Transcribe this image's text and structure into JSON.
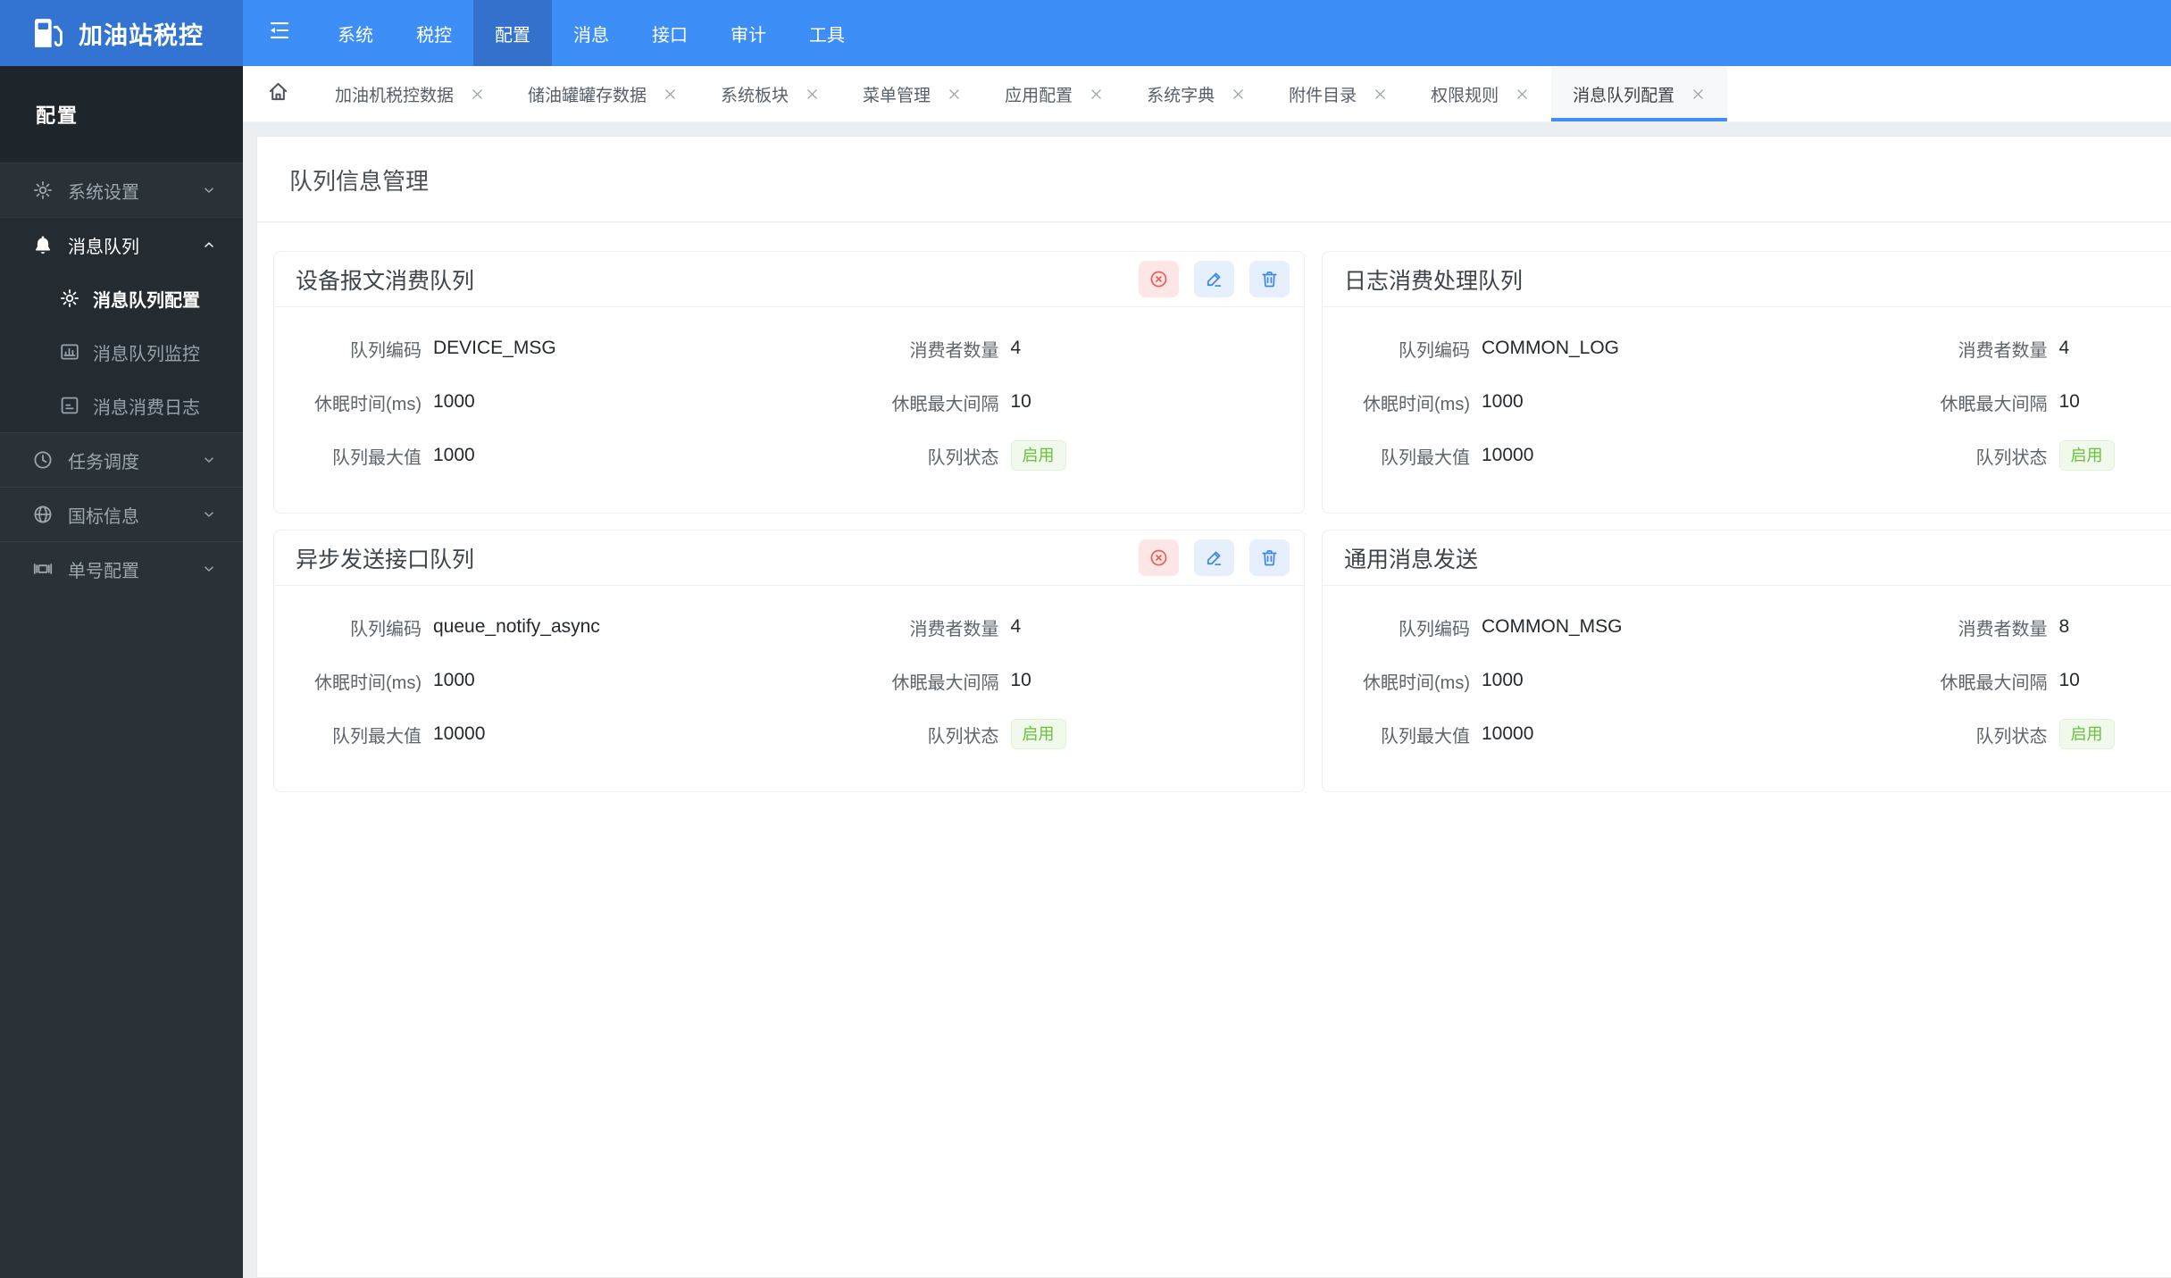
{
  "navbar": {
    "brand": "加油站税控",
    "brand_icon": "fuel-pump-icon",
    "collapse_icon": "collapse-menu-icon",
    "items": [
      {
        "label": "系统",
        "active": false
      },
      {
        "label": "税控",
        "active": false
      },
      {
        "label": "配置",
        "active": true
      },
      {
        "label": "消息",
        "active": false
      },
      {
        "label": "接口",
        "active": false
      },
      {
        "label": "审计",
        "active": false
      },
      {
        "label": "工具",
        "active": false
      }
    ]
  },
  "sidebar": {
    "header": "配置",
    "groups": [
      {
        "label": "系统设置",
        "icon": "gear-icon",
        "expanded": false,
        "children": []
      },
      {
        "label": "消息队列",
        "icon": "bell-icon",
        "expanded": true,
        "children": [
          {
            "label": "消息队列配置",
            "icon": "gear-icon",
            "active": true
          },
          {
            "label": "消息队列监控",
            "icon": "monitor-chart-icon",
            "active": false
          },
          {
            "label": "消息消费日志",
            "icon": "log-icon",
            "active": false
          }
        ]
      },
      {
        "label": "任务调度",
        "icon": "clock-icon",
        "expanded": false,
        "children": []
      },
      {
        "label": "国标信息",
        "icon": "globe-icon",
        "expanded": false,
        "children": []
      },
      {
        "label": "单号配置",
        "icon": "serial-frame-icon",
        "expanded": false,
        "children": []
      }
    ]
  },
  "tabbar": {
    "home_icon": "home-icon",
    "close_icon": "close-icon",
    "tabs": [
      {
        "label": "加油机税控数据",
        "active": false
      },
      {
        "label": "储油罐罐存数据",
        "active": false
      },
      {
        "label": "系统板块",
        "active": false
      },
      {
        "label": "菜单管理",
        "active": false
      },
      {
        "label": "应用配置",
        "active": false
      },
      {
        "label": "系统字典",
        "active": false
      },
      {
        "label": "附件目录",
        "active": false
      },
      {
        "label": "权限规则",
        "active": false
      },
      {
        "label": "消息队列配置",
        "active": true
      }
    ]
  },
  "page": {
    "title": "队列信息管理"
  },
  "card_actions": [
    {
      "name": "disable-queue-button",
      "icon": "stop-circle-icon",
      "style": "danger"
    },
    {
      "name": "edit-queue-button",
      "icon": "edit-pencil-icon",
      "style": "primary"
    },
    {
      "name": "delete-queue-button",
      "icon": "trash-icon",
      "style": "primary"
    }
  ],
  "queues": [
    {
      "title": "设备报文消费队列",
      "fields": [
        {
          "label": "队列编码",
          "value": "DEVICE_MSG"
        },
        {
          "label": "消费者数量",
          "value": "4"
        },
        {
          "label": "休眠时间(ms)",
          "value": "1000"
        },
        {
          "label": "休眠最大间隔",
          "value": "10"
        },
        {
          "label": "队列最大值",
          "value": "1000"
        },
        {
          "label": "队列状态",
          "value": "启用",
          "badge": "success"
        }
      ]
    },
    {
      "title": "日志消费处理队列",
      "fields": [
        {
          "label": "队列编码",
          "value": "COMMON_LOG"
        },
        {
          "label": "消费者数量",
          "value": "4"
        },
        {
          "label": "休眠时间(ms)",
          "value": "1000"
        },
        {
          "label": "休眠最大间隔",
          "value": "10"
        },
        {
          "label": "队列最大值",
          "value": "10000"
        },
        {
          "label": "队列状态",
          "value": "启用",
          "badge": "success"
        }
      ]
    },
    {
      "title": "异步发送接口队列",
      "fields": [
        {
          "label": "队列编码",
          "value": "queue_notify_async"
        },
        {
          "label": "消费者数量",
          "value": "4"
        },
        {
          "label": "休眠时间(ms)",
          "value": "1000"
        },
        {
          "label": "休眠最大间隔",
          "value": "10"
        },
        {
          "label": "队列最大值",
          "value": "10000"
        },
        {
          "label": "队列状态",
          "value": "启用",
          "badge": "success"
        }
      ]
    },
    {
      "title": "通用消息发送",
      "fields": [
        {
          "label": "队列编码",
          "value": "COMMON_MSG"
        },
        {
          "label": "消费者数量",
          "value": "8"
        },
        {
          "label": "休眠时间(ms)",
          "value": "1000"
        },
        {
          "label": "休眠最大间隔",
          "value": "10"
        },
        {
          "label": "队列最大值",
          "value": "10000"
        },
        {
          "label": "队列状态",
          "value": "启用",
          "badge": "success"
        }
      ]
    }
  ],
  "colors": {
    "accent": "#3E8EF7",
    "navbar_bg": "#3E8EF7",
    "navbar_active_bg": "#3471CC",
    "logo_bg": "#3374D3",
    "sidebar_bg": "#2A3137",
    "sidebar_header_bg": "#1F262B",
    "sidebar_expanded_bg": "#242C32",
    "success_text": "#67C23A",
    "success_bg": "#F0F9EB",
    "danger": "#F25B52",
    "danger_btn_bg": "#FCE7E6",
    "primary_btn": "#3E86EC",
    "primary_btn_bg": "#E6F0FC"
  }
}
